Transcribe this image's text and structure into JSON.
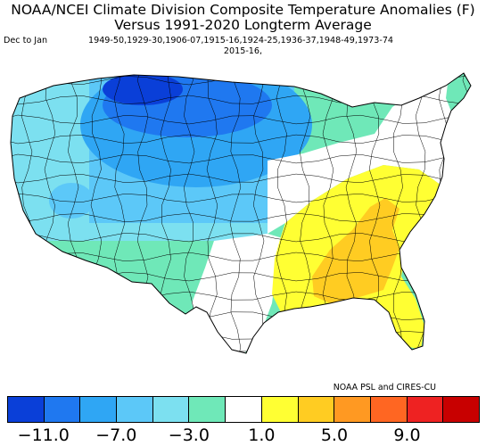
{
  "title_line1": "NOAA/NCEI Climate Division Composite Temperature Anomalies (F)",
  "title_line2": "Versus 1991-2020 Longterm Average",
  "period_label": "Dec to Jan",
  "years_line1": "1949-50,1929-30,1906-07,1915-16,1924-25,1936-37,1948-49,1973-74",
  "years_line2": "2015-16,",
  "credit": "NOAA PSL and CIRES-CU",
  "units": "F",
  "legend": {
    "colors": [
      "#0a3fd8",
      "#1f78f0",
      "#2fa6f4",
      "#5cc8f8",
      "#7ce0f0",
      "#6fe8b8",
      "#ffffff",
      "#ffff33",
      "#ffcc22",
      "#ff9922",
      "#ff6622",
      "#ee2222",
      "#c80000"
    ],
    "tick_labels": [
      "-11.0",
      "-7.0",
      "-3.0",
      "1.0",
      "5.0",
      "9.0"
    ],
    "tick_values": [
      -11,
      -7,
      -3,
      1,
      5,
      9
    ]
  }
}
